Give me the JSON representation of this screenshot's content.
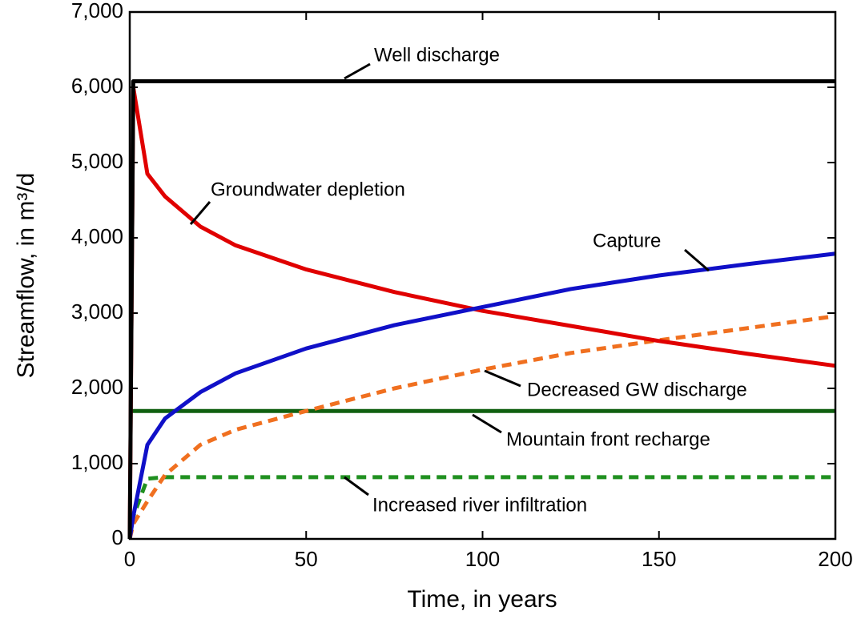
{
  "chart_data": {
    "type": "line",
    "x_label": "Time, in years",
    "y_label": "Streamflow, in m³/d",
    "x": [
      0,
      1,
      5,
      10,
      20,
      30,
      50,
      75,
      100,
      125,
      150,
      175,
      200
    ],
    "series": [
      {
        "name": "Well discharge",
        "color": "#000000",
        "dash": false,
        "values": [
          0,
          6080,
          6080,
          6080,
          6080,
          6080,
          6080,
          6080,
          6080,
          6080,
          6080,
          6080,
          6080
        ]
      },
      {
        "name": "Groundwater depletion",
        "color": "#e00000",
        "dash": false,
        "values": [
          0,
          6000,
          4850,
          4550,
          4150,
          3900,
          3580,
          3280,
          3030,
          2830,
          2630,
          2460,
          2300
        ]
      },
      {
        "name": "Capture",
        "color": "#1010c8",
        "dash": false,
        "values": [
          0,
          300,
          1250,
          1600,
          1950,
          2200,
          2530,
          2840,
          3080,
          3320,
          3500,
          3650,
          3790
        ]
      },
      {
        "name": "Decreased GW discharge",
        "color": "#f07020",
        "dash": true,
        "values": [
          0,
          200,
          500,
          850,
          1250,
          1450,
          1700,
          2000,
          2250,
          2470,
          2640,
          2800,
          2960
        ]
      },
      {
        "name": "Mountain front recharge",
        "color": "#106010",
        "dash": false,
        "values": [
          1700,
          1700,
          1700,
          1700,
          1700,
          1700,
          1700,
          1700,
          1700,
          1700,
          1700,
          1700,
          1700
        ]
      },
      {
        "name": "Increased river infiltration",
        "color": "#209020",
        "dash": true,
        "values": [
          0,
          300,
          800,
          820,
          820,
          820,
          820,
          820,
          820,
          820,
          820,
          820,
          820
        ]
      }
    ],
    "xlim": [
      0,
      200
    ],
    "xticks": [
      0,
      50,
      100,
      150,
      200
    ],
    "ylim": [
      0,
      7000
    ],
    "yticks": [
      0,
      {
        "value": 1000,
        "label": "1,000"
      },
      {
        "value": 2000,
        "label": "2,000"
      },
      {
        "value": 3000,
        "label": "3,000"
      },
      {
        "value": 4000,
        "label": "4,000"
      },
      {
        "value": 5000,
        "label": "5,000"
      },
      {
        "value": 6000,
        "label": "6,000"
      },
      {
        "value": 7000,
        "label": "7,000"
      }
    ]
  }
}
